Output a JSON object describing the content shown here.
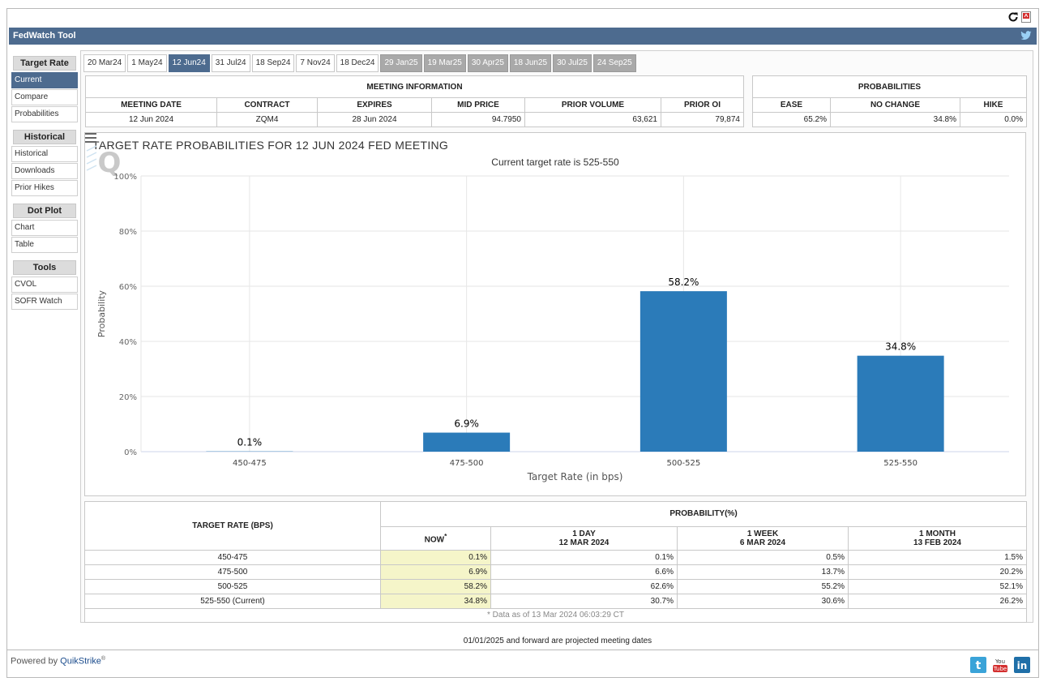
{
  "app": {
    "title": "FedWatch Tool",
    "powered_by": "Powered by ",
    "brand": "QuikStrike",
    "brand_mark": "®"
  },
  "sidebar": {
    "sections": [
      {
        "heading": "Target Rate",
        "items": [
          "Current",
          "Compare",
          "Probabilities"
        ]
      },
      {
        "heading": "Historical",
        "items": [
          "Historical",
          "Downloads",
          "Prior Hikes"
        ]
      },
      {
        "heading": "Dot Plot",
        "items": [
          "Chart",
          "Table"
        ]
      },
      {
        "heading": "Tools",
        "items": [
          "CVOL",
          "SOFR Watch"
        ]
      }
    ],
    "active_item": "Current"
  },
  "tabs": [
    {
      "label": "20 Mar24",
      "state": "normal"
    },
    {
      "label": "1 May24",
      "state": "normal"
    },
    {
      "label": "12 Jun24",
      "state": "active"
    },
    {
      "label": "31 Jul24",
      "state": "normal"
    },
    {
      "label": "18 Sep24",
      "state": "normal"
    },
    {
      "label": "7 Nov24",
      "state": "normal"
    },
    {
      "label": "18 Dec24",
      "state": "normal"
    },
    {
      "label": "29 Jan25",
      "state": "future"
    },
    {
      "label": "19 Mar25",
      "state": "future"
    },
    {
      "label": "30 Apr25",
      "state": "future"
    },
    {
      "label": "18 Jun25",
      "state": "future"
    },
    {
      "label": "30 Jul25",
      "state": "future"
    },
    {
      "label": "24 Sep25",
      "state": "future"
    }
  ],
  "meeting_info": {
    "heading": "MEETING INFORMATION",
    "columns": [
      "MEETING DATE",
      "CONTRACT",
      "EXPIRES",
      "MID PRICE",
      "PRIOR VOLUME",
      "PRIOR OI"
    ],
    "row": [
      "12 Jun 2024",
      "ZQM4",
      "28 Jun 2024",
      "94.7950",
      "63,621",
      "79,874"
    ]
  },
  "probabilities": {
    "heading": "PROBABILITIES",
    "columns": [
      "EASE",
      "NO CHANGE",
      "HIKE"
    ],
    "row": [
      "65.2%",
      "34.8%",
      "0.0%"
    ]
  },
  "chart": {
    "title": "TARGET RATE PROBABILITIES FOR 12 JUN 2024 FED MEETING",
    "subtitle": "Current target rate is 525-550"
  },
  "chart_data": {
    "type": "bar",
    "title": "TARGET RATE PROBABILITIES FOR 12 JUN 2024 FED MEETING",
    "subtitle": "Current target rate is 525-550",
    "categories": [
      "450-475",
      "475-500",
      "500-525",
      "525-550"
    ],
    "values": [
      0.1,
      6.9,
      58.2,
      34.8
    ],
    "value_labels": [
      "0.1%",
      "6.9%",
      "58.2%",
      "34.8%"
    ],
    "xlabel": "Target Rate (in bps)",
    "ylabel": "Probability",
    "ylim": [
      0,
      100
    ],
    "yticks": [
      0,
      20,
      40,
      60,
      80,
      100
    ],
    "ytick_labels": [
      "0%",
      "20%",
      "40%",
      "60%",
      "80%",
      "100%"
    ],
    "grid": true,
    "bar_color": "#2b7bb9"
  },
  "bottom_table": {
    "target_header": "TARGET RATE (BPS)",
    "prob_header": "PROBABILITY(%)",
    "sub_headers": [
      {
        "line1": "NOW",
        "mark": "*",
        "line2": ""
      },
      {
        "line1": "1 DAY",
        "mark": "",
        "line2": "12 MAR 2024"
      },
      {
        "line1": "1 WEEK",
        "mark": "",
        "line2": "6 MAR 2024"
      },
      {
        "line1": "1 MONTH",
        "mark": "",
        "line2": "13 FEB 2024"
      }
    ],
    "rows": [
      [
        "450-475",
        "0.1%",
        "0.1%",
        "0.5%",
        "1.5%"
      ],
      [
        "475-500",
        "6.9%",
        "6.6%",
        "13.7%",
        "20.2%"
      ],
      [
        "500-525",
        "58.2%",
        "62.6%",
        "55.2%",
        "52.1%"
      ],
      [
        "525-550 (Current)",
        "34.8%",
        "30.7%",
        "30.6%",
        "26.2%"
      ]
    ],
    "footnote": "* Data as of 13 Mar 2024 06:03:29 CT"
  },
  "projection_note": "01/01/2025 and forward are projected meeting dates",
  "icons": {
    "refresh": "refresh-icon",
    "pdf": "pdf-icon",
    "twitter": "twitter-icon",
    "menu": "hamburger-menu-icon",
    "youtube": "youtube-icon",
    "linkedin": "linkedin-icon"
  },
  "colors": {
    "header_blue": "#4d6b8f",
    "bar_blue": "#2b7bb9",
    "highlight": "#f5f5c9",
    "future_tab": "#a9a9a9"
  }
}
